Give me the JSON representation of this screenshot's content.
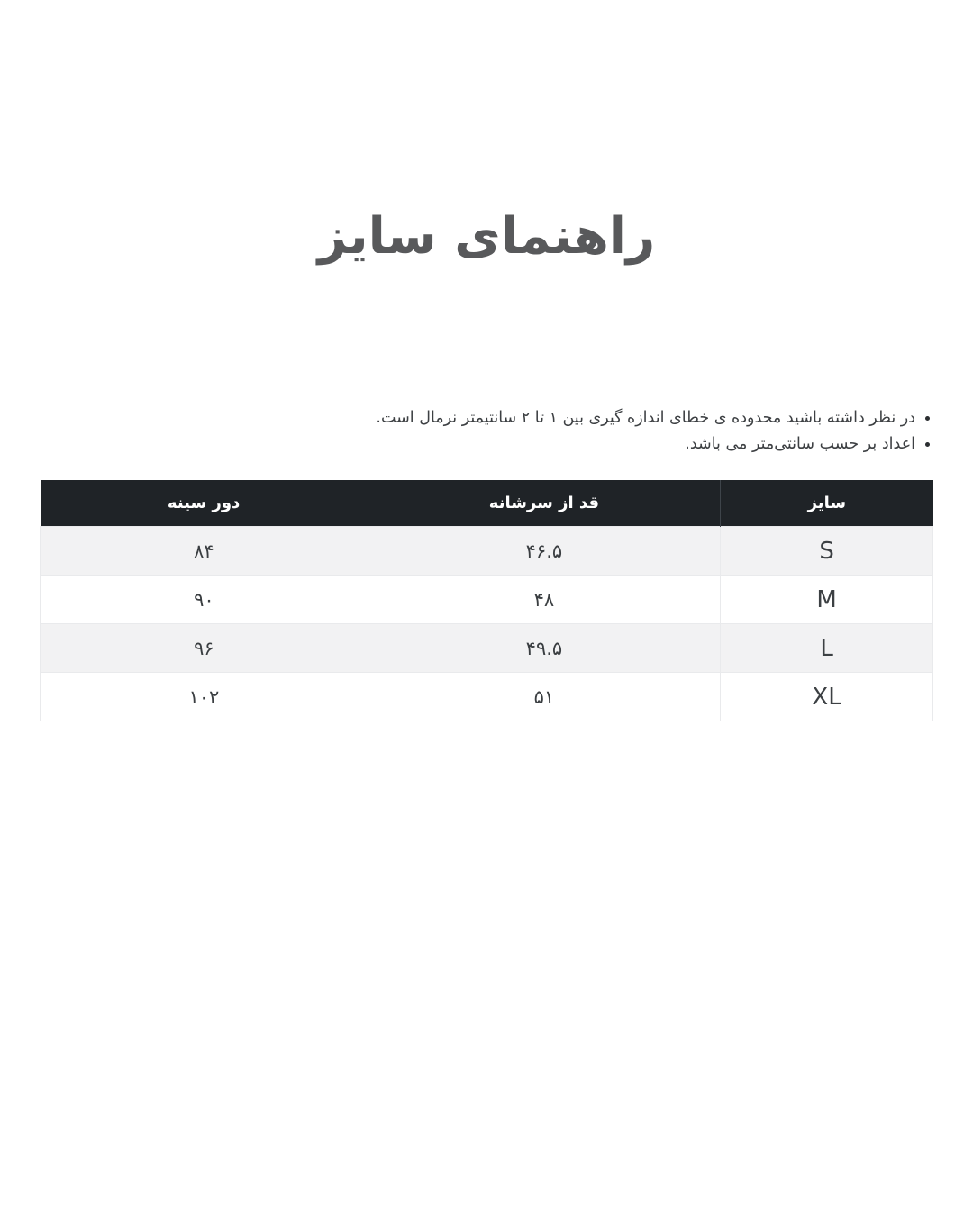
{
  "page": {
    "title": "راهنمای سایز",
    "notes": [
      "در نظر داشته باشید محدوده ی خطای اندازه گیری بین ۱ تا ۲ سانتیمتر نرمال است.",
      "اعداد بر حسب سانتی‌متر می باشد."
    ]
  },
  "size_table": {
    "columns": {
      "size": "سایز",
      "shoulder_length": "قد از سرشانه",
      "chest": "دور سینه"
    },
    "rows": [
      {
        "size": "S",
        "shoulder_length": "۴۶.۵",
        "chest": "۸۴"
      },
      {
        "size": "M",
        "shoulder_length": "۴۸",
        "chest": "۹۰"
      },
      {
        "size": "L",
        "shoulder_length": "۴۹.۵",
        "chest": "۹۶"
      },
      {
        "size": "XL",
        "shoulder_length": "۵۱",
        "chest": "۱۰۲"
      }
    ]
  },
  "colors": {
    "header_background": "#1f2327",
    "header_text": "#ffffff",
    "row_alt_background": "#f2f2f3",
    "row_background": "#ffffff",
    "border": "#e9eaec",
    "title_text": "#58595b",
    "body_text": "#3a3e41"
  }
}
